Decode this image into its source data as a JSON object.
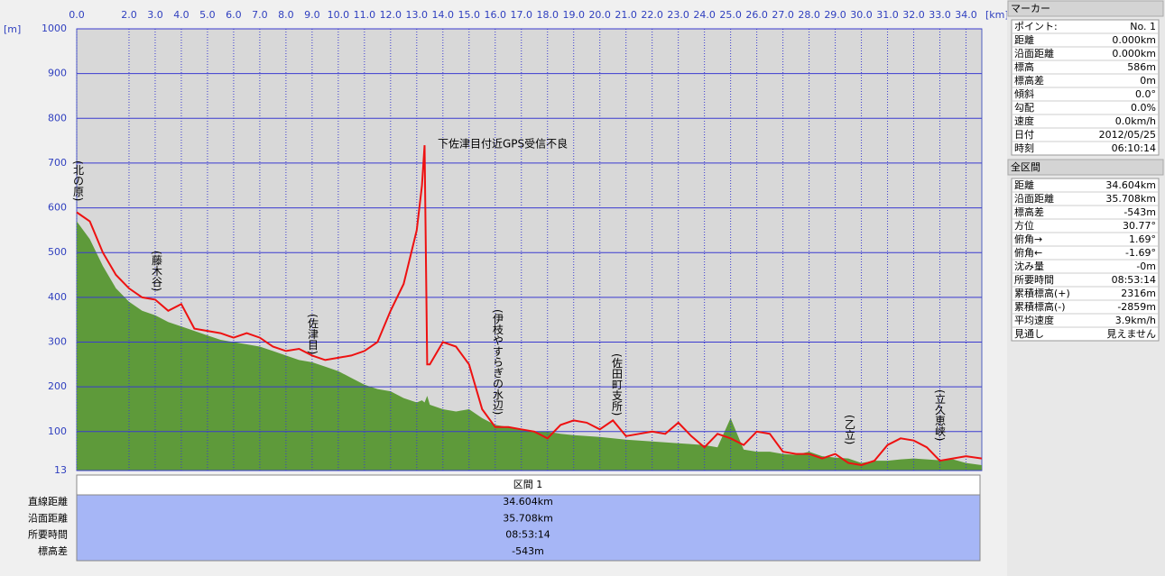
{
  "chart_data": {
    "type": "profile",
    "x_label": "[km]",
    "y_label": "[m]",
    "xlim": [
      0,
      34.604
    ],
    "ylim": [
      13,
      1000
    ],
    "xticks": [
      {
        "value": 0,
        "label": "0.0"
      },
      {
        "value": 2,
        "label": "2.0"
      },
      {
        "value": 3,
        "label": "3.0"
      },
      {
        "value": 4,
        "label": "4.0"
      },
      {
        "value": 5,
        "label": "5.0"
      },
      {
        "value": 6,
        "label": "6.0"
      },
      {
        "value": 7,
        "label": "7.0"
      },
      {
        "value": 8,
        "label": "8.0"
      },
      {
        "value": 9,
        "label": "9.0"
      },
      {
        "value": 10,
        "label": "10.0"
      },
      {
        "value": 11,
        "label": "11.0"
      },
      {
        "value": 12,
        "label": "12.0"
      },
      {
        "value": 13,
        "label": "13.0"
      },
      {
        "value": 14,
        "label": "14.0"
      },
      {
        "value": 15,
        "label": "15.0"
      },
      {
        "value": 16,
        "label": "16.0"
      },
      {
        "value": 17,
        "label": "17.0"
      },
      {
        "value": 18,
        "label": "18.0"
      },
      {
        "value": 19,
        "label": "19.0"
      },
      {
        "value": 20,
        "label": "20.0"
      },
      {
        "value": 21,
        "label": "21.0"
      },
      {
        "value": 22,
        "label": "22.0"
      },
      {
        "value": 23,
        "label": "23.0"
      },
      {
        "value": 24,
        "label": "24.0"
      },
      {
        "value": 25,
        "label": "25.0"
      },
      {
        "value": 26,
        "label": "26.0"
      },
      {
        "value": 27,
        "label": "27.0"
      },
      {
        "value": 28,
        "label": "28.0"
      },
      {
        "value": 29,
        "label": "29.0"
      },
      {
        "value": 30,
        "label": "30.0"
      },
      {
        "value": 31,
        "label": "31.0"
      },
      {
        "value": 32,
        "label": "32.0"
      },
      {
        "value": 33,
        "label": "33.0"
      },
      {
        "value": 34,
        "label": "34.0"
      }
    ],
    "yticks": [
      13,
      100,
      200,
      300,
      400,
      500,
      600,
      700,
      800,
      900,
      1000
    ],
    "grid": true,
    "x": [
      0,
      0.5,
      1,
      1.5,
      2,
      2.5,
      3,
      3.5,
      4,
      4.5,
      5,
      5.5,
      6,
      6.5,
      7,
      7.5,
      8,
      8.5,
      9,
      9.5,
      10,
      10.5,
      11,
      11.5,
      12,
      12.5,
      13,
      13.2,
      13.3,
      13.4,
      13.5,
      14,
      14.5,
      15,
      15.5,
      16,
      16.5,
      17,
      17.5,
      18,
      18.5,
      19,
      19.5,
      20,
      20.5,
      21,
      21.5,
      22,
      22.5,
      23,
      23.5,
      24,
      24.5,
      25,
      25.5,
      26,
      26.5,
      27,
      27.5,
      28,
      28.5,
      29,
      29.5,
      30,
      30.5,
      31,
      31.5,
      32,
      32.5,
      33,
      33.5,
      34,
      34.6
    ],
    "series": [
      {
        "kind": "area",
        "color": "#5e9a3a",
        "values": [
          570,
          530,
          470,
          420,
          390,
          370,
          360,
          345,
          335,
          325,
          315,
          305,
          300,
          295,
          290,
          280,
          270,
          260,
          255,
          245,
          235,
          220,
          205,
          195,
          190,
          175,
          165,
          170,
          165,
          180,
          160,
          150,
          145,
          150,
          130,
          115,
          110,
          105,
          100,
          100,
          95,
          92,
          90,
          88,
          85,
          82,
          80,
          78,
          76,
          74,
          72,
          70,
          65,
          130,
          60,
          55,
          55,
          50,
          48,
          55,
          45,
          42,
          40,
          30,
          35,
          35,
          38,
          40,
          38,
          36,
          38,
          30,
          25
        ]
      },
      {
        "kind": "line",
        "color": "#ee1111",
        "values": [
          590,
          570,
          500,
          450,
          420,
          400,
          395,
          370,
          385,
          330,
          325,
          320,
          310,
          320,
          310,
          290,
          280,
          285,
          270,
          260,
          265,
          270,
          280,
          300,
          370,
          430,
          550,
          650,
          740,
          250,
          250,
          300,
          290,
          250,
          150,
          110,
          110,
          105,
          100,
          85,
          115,
          125,
          120,
          105,
          125,
          90,
          95,
          100,
          95,
          120,
          90,
          65,
          95,
          85,
          70,
          100,
          95,
          55,
          50,
          50,
          40,
          50,
          30,
          25,
          35,
          70,
          85,
          80,
          65,
          35,
          40,
          45,
          40
        ]
      }
    ],
    "annotations": [
      "(北の原)",
      "(藤木谷)",
      "(佐津目)",
      "下佐津目付近GPS受信不良",
      "(伊枝やすらぎの水辺)",
      "(佐田町支所)",
      "(乙立)",
      "(立久恵峡)"
    ]
  },
  "section_table": {
    "header": "区間 1",
    "rows": [
      [
        "直線距離",
        "34.604km"
      ],
      [
        "沿面距離",
        "35.708km"
      ],
      [
        "所要時間",
        "08:53:14"
      ],
      [
        "標高差",
        "-543m"
      ]
    ]
  },
  "marker_panel": {
    "title": "マーカー",
    "rows": [
      [
        "ポイント:",
        "No. 1"
      ],
      [
        "距離",
        "0.000km"
      ],
      [
        "沿面距離",
        "0.000km"
      ],
      [
        "標高",
        "586m"
      ],
      [
        "標高差",
        "0m"
      ],
      [
        "傾斜",
        "0.0°"
      ],
      [
        "勾配",
        "0.0%"
      ],
      [
        "速度",
        "0.0km/h"
      ],
      [
        "日付",
        "2012/05/25"
      ],
      [
        "時刻",
        "06:10:14"
      ]
    ]
  },
  "summary_panel": {
    "title": "全区間",
    "rows": [
      [
        "距離",
        "34.604km"
      ],
      [
        "沿面距離",
        "35.708km"
      ],
      [
        "標高差",
        "-543m"
      ],
      [
        "方位",
        "30.77°"
      ],
      [
        "俯角→",
        "1.69°"
      ],
      [
        "俯角←",
        "-1.69°"
      ],
      [
        "沈み量",
        "-0m"
      ],
      [
        "所要時間",
        "08:53:14"
      ],
      [
        "累積標高(+)",
        "2316m"
      ],
      [
        "累積標高(-)",
        "-2859m"
      ],
      [
        "平均速度",
        "3.9km/h"
      ],
      [
        "見通し",
        "見えません"
      ]
    ]
  }
}
